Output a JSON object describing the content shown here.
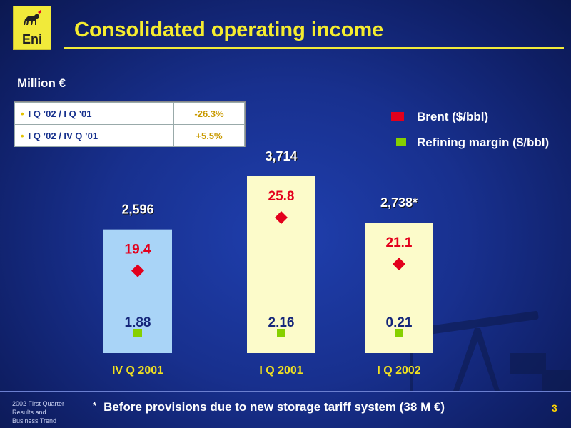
{
  "header": {
    "logo_text": "Eni",
    "title": "Consolidated operating income"
  },
  "unit_label": "Million €",
  "variance_table": [
    {
      "label": "I Q ’02  / I Q ’01",
      "value": "-26.3%"
    },
    {
      "label": "I Q ’02  / IV Q ’01",
      "value": "+5.5%"
    }
  ],
  "legend": {
    "brent": {
      "label": "Brent ($/bbl)",
      "color": "#e3001c"
    },
    "refining": {
      "label": "Refining margin ($/bbl)",
      "color": "#86d000"
    }
  },
  "chart_data": {
    "type": "bar",
    "categories": [
      "IV Q 2001",
      "I Q 2001",
      "I Q 2002"
    ],
    "values": [
      2596,
      3714,
      2738
    ],
    "value_labels": [
      "2,596",
      "3,714",
      "2,738*"
    ],
    "bar_colors": [
      "#a9d4f7",
      "#fcfbca",
      "#fcfbca"
    ],
    "series": [
      {
        "name": "Brent ($/bbl)",
        "values": [
          19.4,
          25.8,
          21.1
        ],
        "labels": [
          "19.4",
          "25.8",
          "21.1"
        ],
        "color": "#e3001c",
        "marker": "diamond"
      },
      {
        "name": "Refining margin ($/bbl)",
        "values": [
          1.88,
          2.16,
          0.21
        ],
        "labels": [
          "1.88",
          "2.16",
          "0.21"
        ],
        "color": "#86d000",
        "marker": "square"
      }
    ],
    "ylim": [
      0,
      4000
    ],
    "grid": false
  },
  "footer": {
    "left_lines": [
      "2002 First Quarter",
      "Results and",
      "Business Trend"
    ],
    "footnote_star": "*",
    "footnote": "Before provisions due to new storage tariff system (38 M €)",
    "page_number": "3"
  }
}
